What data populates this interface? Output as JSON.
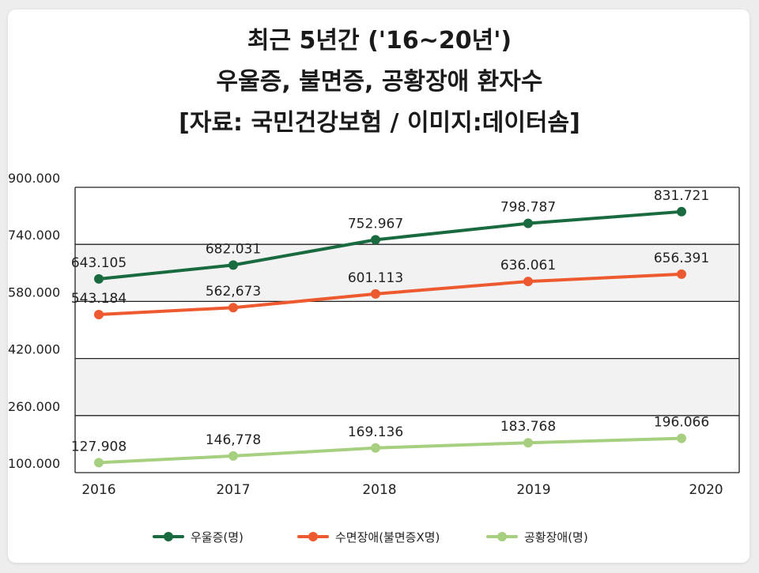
{
  "chart_data": {
    "type": "line",
    "title_lines": [
      "최근 5년간 ('16~20년')",
      "우울증, 불면증, 공황장애 환자수",
      "[자료: 국민건강보험 / 이미지:데이터솜]"
    ],
    "categories": [
      "2016",
      "2017",
      "2018",
      "2019",
      "2020"
    ],
    "y_ticks": [
      "900.000",
      "740.000",
      "580.000",
      "420.000",
      "260.000",
      "100.000"
    ],
    "ylim": [
      100000,
      900000
    ],
    "grid": true,
    "legend_position": "bottom",
    "series": [
      {
        "name": "우울증(명)",
        "color": "#1a6a3f",
        "values": [
          643105,
          682031,
          752967,
          798787,
          831721
        ],
        "labels": [
          "643.105",
          "682.031",
          "752.967",
          "798.787",
          "831.721"
        ]
      },
      {
        "name": "수면장애(불면증X명)",
        "color": "#ee5a2f",
        "values": [
          543184,
          562673,
          601113,
          636061,
          656391
        ],
        "labels": [
          "543.184",
          "562,673",
          "601.113",
          "636.061",
          "656.391"
        ]
      },
      {
        "name": "공황장애(명)",
        "color": "#a6d07f",
        "values": [
          127908,
          146778,
          169136,
          183768,
          196066
        ],
        "labels": [
          "127.908",
          "146,778",
          "169.136",
          "183.768",
          "196.066"
        ]
      }
    ]
  }
}
